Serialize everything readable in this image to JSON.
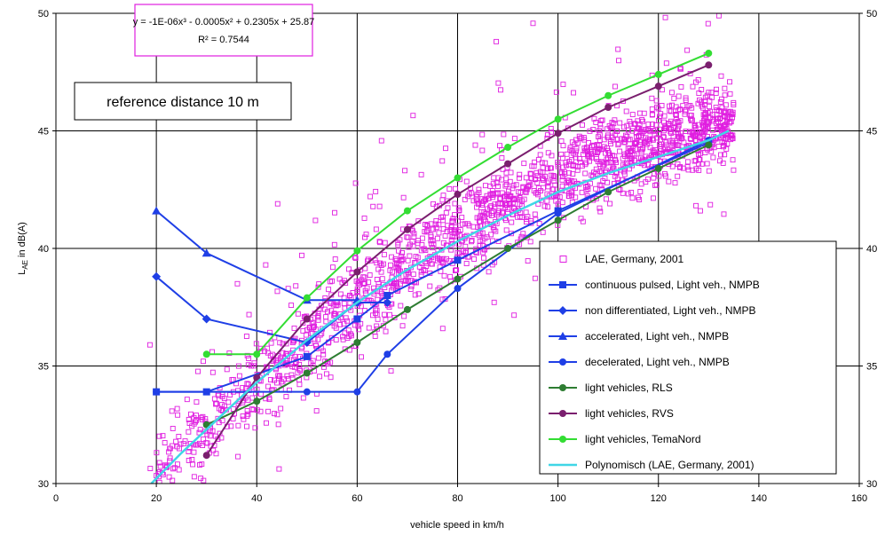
{
  "chart_data": {
    "type": "scatter",
    "xlabel": "vehicle speed in km/h",
    "ylabel": "L_AE in dB(A)",
    "ylabel_main": "L",
    "ylabel_sub": "AE",
    "ylabel_rest": " in dB(A)",
    "xlim": [
      0,
      160
    ],
    "ylim": [
      30,
      50
    ],
    "xticks": [
      0,
      20,
      40,
      60,
      80,
      100,
      120,
      140,
      160
    ],
    "yticks": [
      30,
      35,
      40,
      45,
      50
    ],
    "right_axis_ticks": [
      30,
      35,
      40,
      45,
      50
    ],
    "grid": true,
    "legend_position": "bottom-right",
    "equation_text": "y = -1E-06x³ - 0.0005x² + 0.2305x + 25.87",
    "r2_text": "R² = 0.7544",
    "annotation": "reference distance 10 m",
    "colors": {
      "scatter": "#e01ee0",
      "continuous": "#1f3fe6",
      "light_rls": "#2e7d32",
      "light_rvs": "#7a1f6e",
      "temanord": "#33dd33",
      "poly": "#3fd6e6"
    },
    "scatter_series": {
      "name": "LAE, Germany, 2001",
      "marker": "open-square",
      "x_range": [
        15,
        135
      ],
      "y_range": [
        30,
        50
      ],
      "count_sketch": 1800
    },
    "series": [
      {
        "name": "continuous pulsed, Light veh., NMPB",
        "marker": "square",
        "color_key": "continuous",
        "x": [
          20,
          30,
          50,
          60,
          66,
          80,
          100,
          130
        ],
        "y": [
          33.9,
          33.9,
          35.4,
          37.0,
          38.0,
          39.5,
          41.6,
          44.5
        ]
      },
      {
        "name": "non differentiated, Light veh., NMPB",
        "marker": "diamond",
        "color_key": "continuous",
        "x": [
          20,
          30,
          50,
          60,
          66
        ],
        "y": [
          38.8,
          37.0,
          36.0,
          37.7,
          37.7
        ]
      },
      {
        "name": "accelerated, Light veh., NMPB",
        "marker": "triangle",
        "color_key": "continuous",
        "x": [
          20,
          30,
          50,
          60
        ],
        "y": [
          41.6,
          39.8,
          37.8,
          37.8
        ]
      },
      {
        "name": "decelerated, Light veh., NMPB",
        "marker": "circle",
        "color_key": "continuous",
        "x": [
          20,
          50,
          60,
          66,
          80,
          100,
          130
        ],
        "y": [
          33.9,
          33.9,
          33.9,
          35.5,
          38.3,
          41.5,
          44.6
        ]
      },
      {
        "name": "light vehicles, RLS",
        "marker": "circle",
        "color_key": "light_rls",
        "x": [
          30,
          40,
          50,
          60,
          70,
          80,
          90,
          100,
          110,
          120,
          130
        ],
        "y": [
          32.5,
          33.5,
          34.7,
          36.0,
          37.4,
          38.7,
          40.0,
          41.2,
          42.4,
          43.4,
          44.4
        ]
      },
      {
        "name": "light vehicles, RVS",
        "marker": "circle",
        "color_key": "light_rvs",
        "x": [
          30,
          40,
          50,
          60,
          70,
          80,
          90,
          100,
          110,
          120,
          130
        ],
        "y": [
          31.2,
          34.5,
          37.0,
          39.0,
          40.8,
          42.3,
          43.6,
          44.9,
          46.0,
          46.9,
          47.8
        ]
      },
      {
        "name": "light vehicles, TemaNord",
        "marker": "circle",
        "color_key": "temanord",
        "x": [
          30,
          40,
          50,
          60,
          70,
          80,
          90,
          100,
          110,
          120,
          130
        ],
        "y": [
          35.5,
          35.5,
          37.9,
          39.9,
          41.6,
          43.0,
          44.3,
          45.5,
          46.5,
          47.4,
          48.3
        ]
      },
      {
        "name": "Polynomisch (LAE, Germany, 2001)",
        "marker": "none",
        "color_key": "poly",
        "x": [
          19,
          25,
          30,
          40,
          50,
          60,
          70,
          80,
          90,
          100,
          110,
          120,
          130,
          134
        ],
        "y": [
          30.0,
          31.3,
          32.3,
          34.3,
          36.1,
          37.7,
          39.1,
          40.3,
          41.4,
          42.4,
          43.2,
          43.9,
          44.6,
          45.0
        ]
      }
    ]
  }
}
